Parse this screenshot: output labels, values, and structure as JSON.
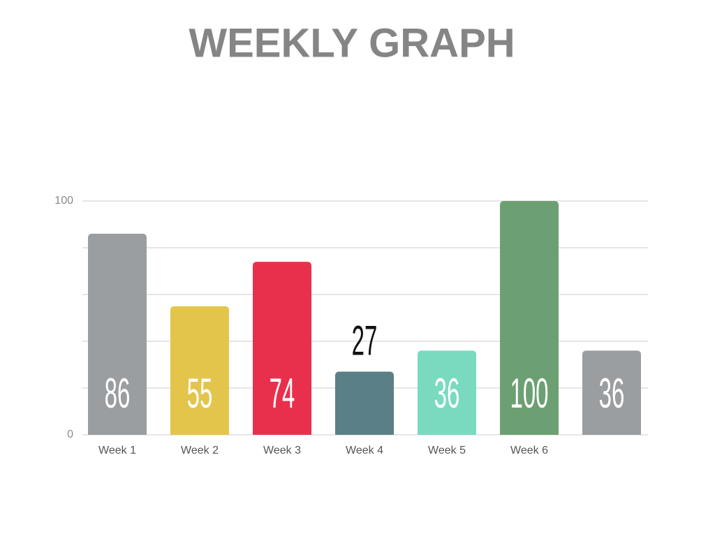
{
  "chart_data": {
    "type": "bar",
    "title": "WEEKLY GRAPH",
    "categories": [
      "Week 1",
      "Week 2",
      "Week 3",
      "Week 4",
      "Week 5",
      "Week 6",
      null
    ],
    "values": [
      86,
      55,
      74,
      27,
      36,
      100,
      36
    ],
    "colors": [
      "#9a9ea1",
      "#e3c54c",
      "#e8304d",
      "#5b7f86",
      "#79dac0",
      "#6ca072",
      "#9a9ea1"
    ],
    "ylim": [
      0,
      100
    ],
    "yticks": [
      0,
      100
    ],
    "gridlines": [
      0,
      20,
      40,
      60,
      80,
      100
    ],
    "grid": true
  }
}
